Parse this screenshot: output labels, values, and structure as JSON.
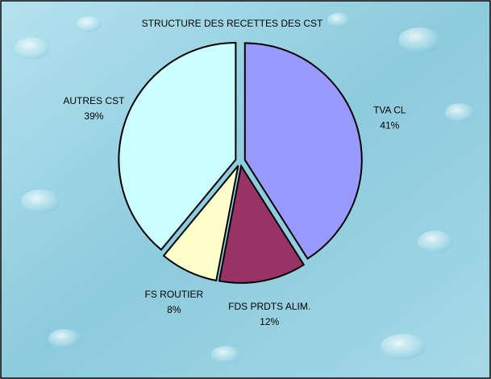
{
  "chart_data": {
    "type": "pie",
    "title": "STRUCTURE DES RECETTES DES CST",
    "categories": [
      "TVA CL",
      "FDS PRDTS ALIM.",
      "FS ROUTIER",
      "AUTRES CST"
    ],
    "values": [
      41,
      12,
      8,
      39
    ],
    "value_labels": [
      "41%",
      "12%",
      "8%",
      "39%"
    ],
    "colors": [
      "#9999ff",
      "#993366",
      "#ffffcc",
      "#ccffff"
    ]
  }
}
